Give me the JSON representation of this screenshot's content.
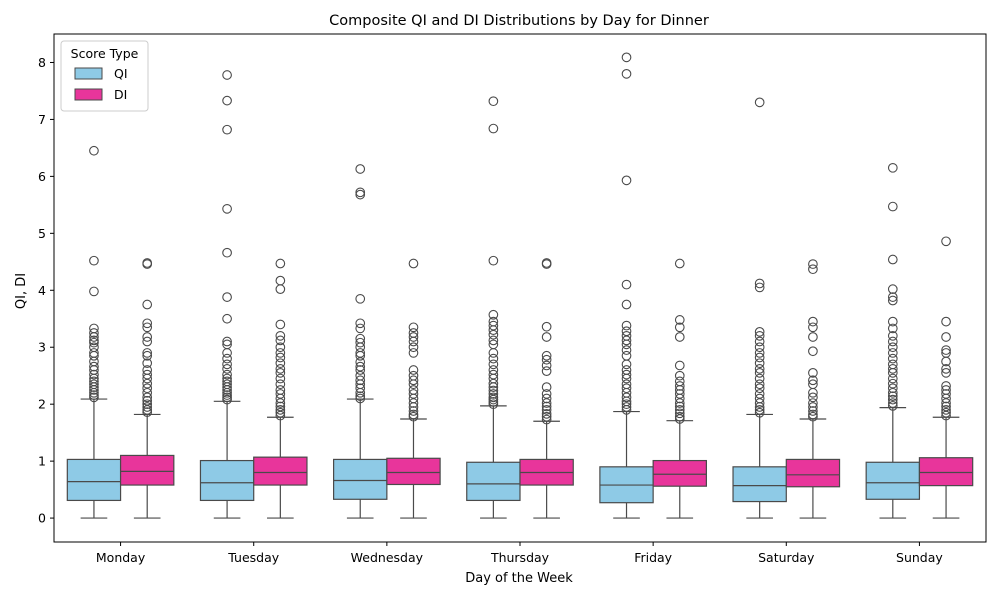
{
  "chart_data": {
    "type": "box",
    "title": "Composite QI and DI Distributions by Day for Dinner",
    "xlabel": "Day of the Week",
    "ylabel": "QI, DI",
    "ylim": [
      -0.42,
      8.5
    ],
    "yticks": [
      0,
      1,
      2,
      3,
      4,
      5,
      6,
      7,
      8
    ],
    "grid": false,
    "legend": {
      "title": "Score Type",
      "position": "top-left"
    },
    "categories": [
      "Monday",
      "Tuesday",
      "Wednesday",
      "Thursday",
      "Friday",
      "Saturday",
      "Sunday"
    ],
    "series": [
      {
        "name": "QI",
        "color": "#8ecae6",
        "boxes": [
          {
            "whislo": 0,
            "q1": 0.31,
            "med": 0.64,
            "q3": 1.03,
            "whishi": 2.09,
            "fliers": [
              2.12,
              2.16,
              2.2,
              2.25,
              2.3,
              2.35,
              2.4,
              2.45,
              2.52,
              2.6,
              2.66,
              2.75,
              2.85,
              2.9,
              3.0,
              3.08,
              3.12,
              3.18,
              3.25,
              3.33,
              3.98,
              4.52,
              6.45
            ]
          },
          {
            "whislo": 0,
            "q1": 0.31,
            "med": 0.62,
            "q3": 1.01,
            "whishi": 2.05,
            "fliers": [
              2.08,
              2.12,
              2.16,
              2.2,
              2.25,
              2.3,
              2.35,
              2.4,
              2.45,
              2.52,
              2.62,
              2.7,
              2.8,
              2.9,
              3.05,
              3.1,
              3.5,
              3.88,
              4.66,
              5.43,
              6.82,
              7.33,
              7.78
            ]
          },
          {
            "whislo": 0,
            "q1": 0.33,
            "med": 0.66,
            "q3": 1.03,
            "whishi": 2.09,
            "fliers": [
              2.1,
              2.14,
              2.2,
              2.28,
              2.35,
              2.42,
              2.5,
              2.6,
              2.66,
              2.74,
              2.85,
              2.9,
              3.0,
              3.08,
              3.15,
              3.33,
              3.42,
              3.85,
              5.68,
              5.72,
              6.13
            ]
          },
          {
            "whislo": 0,
            "q1": 0.31,
            "med": 0.6,
            "q3": 0.98,
            "whishi": 1.97,
            "fliers": [
              2.0,
              2.04,
              2.08,
              2.12,
              2.18,
              2.24,
              2.3,
              2.36,
              2.45,
              2.52,
              2.6,
              2.7,
              2.8,
              2.9,
              3.05,
              3.12,
              3.22,
              3.3,
              3.38,
              3.45,
              3.57,
              4.52,
              6.84,
              7.32
            ]
          },
          {
            "whislo": 0,
            "q1": 0.27,
            "med": 0.58,
            "q3": 0.9,
            "whishi": 1.87,
            "fliers": [
              1.9,
              1.95,
              2.0,
              2.05,
              2.12,
              2.2,
              2.28,
              2.35,
              2.45,
              2.52,
              2.6,
              2.7,
              2.85,
              2.95,
              3.05,
              3.12,
              3.2,
              3.28,
              3.38,
              3.75,
              4.1,
              5.93,
              7.8,
              8.09
            ]
          },
          {
            "whislo": 0,
            "q1": 0.29,
            "med": 0.57,
            "q3": 0.9,
            "whishi": 1.82,
            "fliers": [
              1.85,
              1.9,
              1.95,
              2.02,
              2.1,
              2.18,
              2.28,
              2.35,
              2.45,
              2.55,
              2.62,
              2.72,
              2.82,
              2.9,
              3.0,
              3.1,
              3.2,
              3.27,
              4.05,
              4.12,
              7.3
            ]
          },
          {
            "whislo": 0,
            "q1": 0.33,
            "med": 0.62,
            "q3": 0.98,
            "whishi": 1.94,
            "fliers": [
              1.97,
              2.02,
              2.08,
              2.14,
              2.2,
              2.28,
              2.36,
              2.45,
              2.55,
              2.62,
              2.7,
              2.8,
              2.9,
              3.0,
              3.1,
              3.2,
              3.33,
              3.45,
              3.82,
              3.88,
              4.02,
              4.54,
              5.47,
              6.15
            ]
          }
        ]
      },
      {
        "name": "DI",
        "color": "#e8359b",
        "boxes": [
          {
            "whislo": 0,
            "q1": 0.58,
            "med": 0.82,
            "q3": 1.1,
            "whishi": 1.82,
            "fliers": [
              1.86,
              1.9,
              1.95,
              2.0,
              2.06,
              2.12,
              2.2,
              2.28,
              2.36,
              2.45,
              2.52,
              2.6,
              2.72,
              2.85,
              2.9,
              3.1,
              3.18,
              3.35,
              3.42,
              3.75,
              4.46,
              4.48
            ]
          },
          {
            "whislo": 0,
            "q1": 0.58,
            "med": 0.8,
            "q3": 1.07,
            "whishi": 1.77,
            "fliers": [
              1.8,
              1.85,
              1.9,
              1.96,
              2.02,
              2.1,
              2.18,
              2.25,
              2.35,
              2.45,
              2.55,
              2.62,
              2.72,
              2.82,
              2.9,
              3.0,
              3.12,
              3.2,
              3.4,
              4.02,
              4.17,
              4.47
            ]
          },
          {
            "whislo": 0,
            "q1": 0.59,
            "med": 0.8,
            "q3": 1.05,
            "whishi": 1.74,
            "fliers": [
              1.78,
              1.82,
              1.88,
              1.95,
              2.02,
              2.1,
              2.18,
              2.25,
              2.35,
              2.42,
              2.5,
              2.6,
              2.9,
              3.0,
              3.1,
              3.18,
              3.25,
              3.35,
              4.47
            ]
          },
          {
            "whislo": 0,
            "q1": 0.58,
            "med": 0.8,
            "q3": 1.03,
            "whishi": 1.7,
            "fliers": [
              1.73,
              1.78,
              1.83,
              1.9,
              1.96,
              2.02,
              2.1,
              2.18,
              2.3,
              2.58,
              2.68,
              2.78,
              2.85,
              3.18,
              3.36,
              4.46,
              4.48
            ]
          },
          {
            "whislo": 0,
            "q1": 0.56,
            "med": 0.77,
            "q3": 1.01,
            "whishi": 1.71,
            "fliers": [
              1.74,
              1.78,
              1.84,
              1.9,
              1.96,
              2.02,
              2.1,
              2.18,
              2.25,
              2.32,
              2.4,
              2.5,
              2.68,
              3.18,
              3.35,
              3.48,
              4.47
            ]
          },
          {
            "whislo": 0,
            "q1": 0.55,
            "med": 0.76,
            "q3": 1.03,
            "whishi": 1.74,
            "fliers": [
              1.78,
              1.82,
              1.88,
              1.95,
              2.02,
              2.12,
              2.2,
              2.35,
              2.42,
              2.55,
              2.93,
              3.18,
              3.35,
              3.45,
              4.37,
              4.46
            ]
          },
          {
            "whislo": 0,
            "q1": 0.57,
            "med": 0.8,
            "q3": 1.06,
            "whishi": 1.77,
            "fliers": [
              1.8,
              1.85,
              1.9,
              1.96,
              2.02,
              2.1,
              2.18,
              2.25,
              2.32,
              2.55,
              2.62,
              2.75,
              2.9,
              2.95,
              3.18,
              3.45,
              4.86
            ]
          }
        ]
      }
    ]
  }
}
